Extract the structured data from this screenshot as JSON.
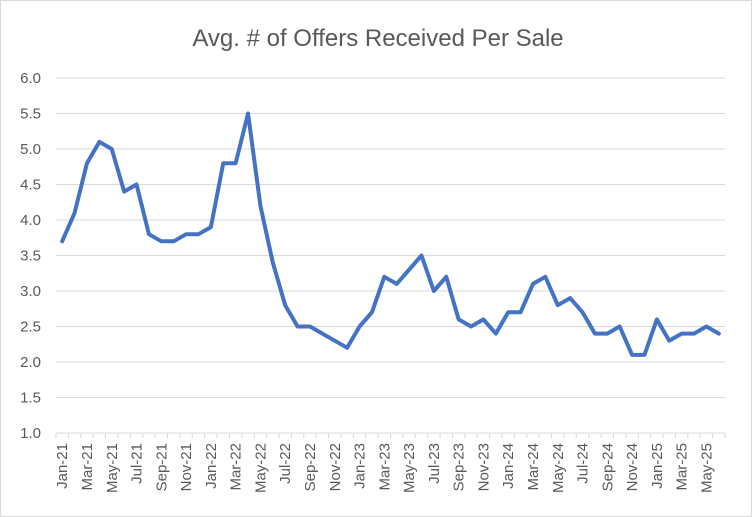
{
  "chart_data": {
    "type": "line",
    "title": "Avg. # of Offers Received Per Sale",
    "xlabel": "",
    "ylabel": "",
    "ylim": [
      1.0,
      6.0
    ],
    "yticks": [
      "1.0",
      "1.5",
      "2.0",
      "2.5",
      "3.0",
      "3.5",
      "4.0",
      "4.5",
      "5.0",
      "5.5",
      "6.0"
    ],
    "grid": true,
    "legend": "none",
    "line_color": "#4472c4",
    "x": [
      "Jan-21",
      "Feb-21",
      "Mar-21",
      "Apr-21",
      "May-21",
      "Jun-21",
      "Jul-21",
      "Aug-21",
      "Sep-21",
      "Oct-21",
      "Nov-21",
      "Dec-21",
      "Jan-22",
      "Feb-22",
      "Mar-22",
      "Apr-22",
      "May-22",
      "Jun-22",
      "Jul-22",
      "Aug-22",
      "Sep-22",
      "Oct-22",
      "Nov-22",
      "Dec-22",
      "Jan-23",
      "Feb-23",
      "Mar-23",
      "Apr-23",
      "May-23",
      "Jun-23",
      "Jul-23",
      "Aug-23",
      "Sep-23",
      "Oct-23",
      "Nov-23",
      "Dec-23",
      "Jan-24",
      "Feb-24",
      "Mar-24",
      "Apr-24",
      "May-24",
      "Jun-24",
      "Jul-24",
      "Aug-24",
      "Sep-24",
      "Oct-24",
      "Nov-24",
      "Dec-24",
      "Jan-25",
      "Feb-25",
      "Mar-25",
      "Apr-25",
      "May-25",
      "Jun-25"
    ],
    "xtick_labels": [
      "Jan-21",
      "Mar-21",
      "May-21",
      "Jul-21",
      "Sep-21",
      "Nov-21",
      "Jan-22",
      "Mar-22",
      "May-22",
      "Jul-22",
      "Sep-22",
      "Nov-22",
      "Jan-23",
      "Mar-23",
      "May-23",
      "Jul-23",
      "Sep-23",
      "Nov-23",
      "Jan-24",
      "Mar-24",
      "May-24",
      "Jul-24",
      "Sep-24",
      "Nov-24",
      "Jan-25",
      "Mar-25",
      "May-25"
    ],
    "series": [
      {
        "values": [
          3.7,
          4.1,
          4.8,
          5.1,
          5.0,
          4.4,
          4.5,
          3.8,
          3.7,
          3.7,
          3.8,
          3.8,
          3.9,
          4.8,
          4.8,
          5.5,
          4.2,
          3.4,
          2.8,
          2.5,
          2.5,
          2.4,
          2.3,
          2.2,
          2.5,
          2.7,
          3.2,
          3.1,
          3.3,
          3.5,
          3.0,
          3.2,
          2.6,
          2.5,
          2.6,
          2.4,
          2.7,
          2.7,
          3.1,
          3.2,
          2.8,
          2.9,
          2.7,
          2.4,
          2.4,
          2.5,
          2.1,
          2.1,
          2.6,
          2.3,
          2.4,
          2.4,
          2.5,
          2.4
        ]
      }
    ]
  }
}
